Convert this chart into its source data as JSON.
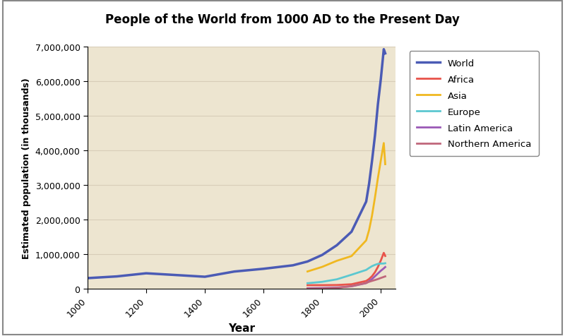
{
  "title": "People of the World from 1000 AD to the Present Day",
  "xlabel": "Year",
  "ylabel": "Estimated population (in thousands)",
  "title_bg_color": "#E8837A",
  "plot_bg_color": "#EDE5D0",
  "outer_bg_color": "#FFFFFF",
  "border_color": "#888888",
  "xlim": [
    1000,
    2050
  ],
  "ylim": [
    0,
    7000000
  ],
  "yticks": [
    0,
    1000000,
    2000000,
    3000000,
    4000000,
    5000000,
    6000000,
    7000000
  ],
  "ytick_labels": [
    "0",
    "1,000,000",
    "2,000,000",
    "3,000,000",
    "4,000,000",
    "5,000,000",
    "6,000,000",
    "7,000,000"
  ],
  "xticks": [
    1000,
    1200,
    1400,
    1600,
    1800,
    2000
  ],
  "grid_color": "#D8CDB8",
  "series": {
    "World": {
      "color": "#4B5BB5",
      "linewidth": 2.5,
      "data": {
        "years": [
          1000,
          1100,
          1200,
          1300,
          1400,
          1500,
          1600,
          1700,
          1750,
          1800,
          1850,
          1900,
          1950,
          1960,
          1970,
          1980,
          1990,
          2000,
          2010,
          2015
        ],
        "values": [
          310000,
          360000,
          450000,
          400000,
          350000,
          500000,
          580000,
          680000,
          790000,
          980000,
          1260000,
          1650000,
          2520000,
          3040000,
          3700000,
          4430000,
          5330000,
          6060000,
          6920000,
          6800000
        ]
      }
    },
    "Africa": {
      "color": "#E8534A",
      "linewidth": 2.0,
      "data": {
        "years": [
          1750,
          1800,
          1850,
          1900,
          1950,
          1960,
          1970,
          1980,
          1990,
          2000,
          2010,
          2015
        ],
        "values": [
          106000,
          107000,
          111000,
          133000,
          228000,
          285000,
          366000,
          480000,
          634000,
          820000,
          1040000,
          950000
        ]
      }
    },
    "Asia": {
      "color": "#F0B820",
      "linewidth": 2.0,
      "data": {
        "years": [
          1750,
          1800,
          1850,
          1900,
          1950,
          1960,
          1970,
          1980,
          1990,
          2000,
          2010,
          2015
        ],
        "values": [
          502000,
          635000,
          811000,
          947000,
          1400000,
          1700000,
          2120000,
          2640000,
          3200000,
          3710000,
          4210000,
          3600000
        ]
      }
    },
    "Europe": {
      "color": "#5CC8D0",
      "linewidth": 2.0,
      "data": {
        "years": [
          1750,
          1800,
          1850,
          1900,
          1950,
          1960,
          1970,
          1980,
          1990,
          2000,
          2010,
          2015
        ],
        "values": [
          163000,
          203000,
          276000,
          408000,
          547000,
          604000,
          656000,
          693000,
          721000,
          730000,
          732000,
          740000
        ]
      }
    },
    "Latin America": {
      "color": "#9B59B6",
      "linewidth": 2.0,
      "data": {
        "years": [
          1750,
          1800,
          1850,
          1900,
          1950,
          1960,
          1970,
          1980,
          1990,
          2000,
          2010,
          2015
        ],
        "values": [
          16000,
          24000,
          38000,
          74000,
          167000,
          220000,
          285000,
          364000,
          444000,
          523000,
          592000,
          630000
        ]
      }
    },
    "Northern America": {
      "color": "#C0677B",
      "linewidth": 2.0,
      "data": {
        "years": [
          1750,
          1800,
          1850,
          1900,
          1950,
          1960,
          1970,
          1980,
          1990,
          2000,
          2010,
          2015
        ],
        "values": [
          2000,
          7000,
          26000,
          82000,
          172000,
          205000,
          231000,
          256000,
          283000,
          315000,
          345000,
          360000
        ]
      }
    }
  }
}
